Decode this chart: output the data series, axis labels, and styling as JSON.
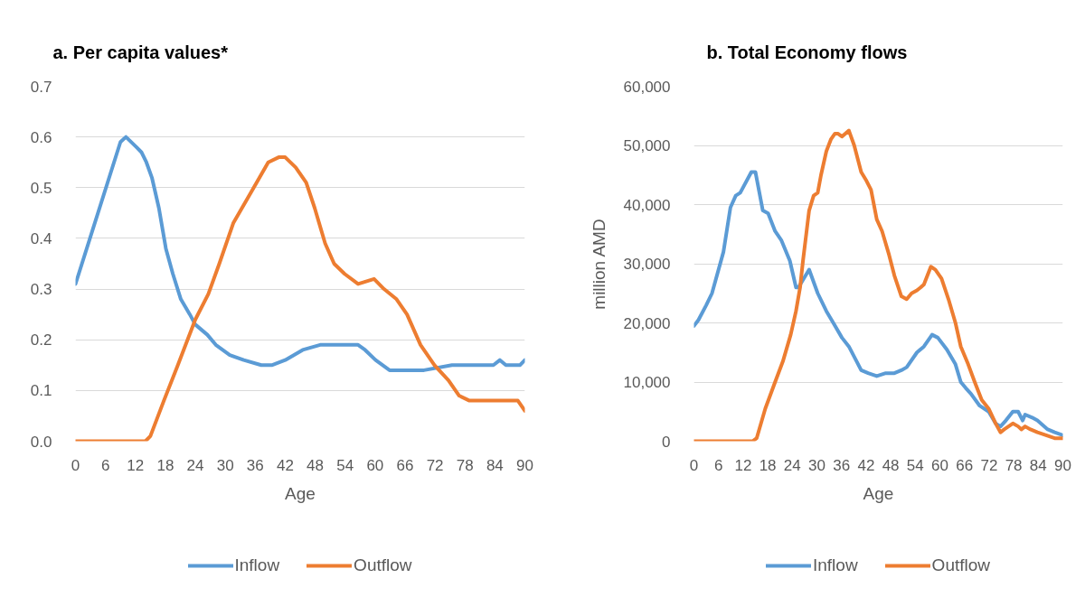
{
  "chart_data": [
    {
      "type": "line",
      "title": "a. Per capita values*",
      "xlabel": "Age",
      "xlim": [
        0,
        90
      ],
      "xticks": [
        0,
        6,
        12,
        18,
        24,
        30,
        36,
        42,
        48,
        54,
        60,
        66,
        72,
        78,
        84,
        90
      ],
      "ylim": [
        0,
        0.7
      ],
      "yticks": [
        {
          "value": 0,
          "label": "0.0"
        },
        0.1,
        0.2,
        0.3,
        0.4,
        0.5,
        0.6,
        0.7
      ],
      "grid": "y",
      "legend": "bottom",
      "series": [
        {
          "name": "Inflow",
          "color": "#5b9bd5",
          "x": [
            0,
            9,
            10.1,
            12.2,
            13.2,
            14.2,
            15.3,
            16.7,
            18.1,
            19.5,
            21.1,
            22.9,
            24,
            26.4,
            28.1,
            30.9,
            33.7,
            37.2,
            39.3,
            42,
            45.5,
            49,
            51.4,
            53.5,
            56.6,
            58,
            60.1,
            62.9,
            67.8,
            69.8,
            75.4,
            77.5,
            83.7,
            85,
            86.2,
            89,
            90
          ],
          "values": [
            0.31,
            0.59,
            0.6,
            0.58,
            0.57,
            0.55,
            0.52,
            0.46,
            0.38,
            0.33,
            0.28,
            0.25,
            0.23,
            0.21,
            0.19,
            0.17,
            0.16,
            0.15,
            0.15,
            0.16,
            0.18,
            0.19,
            0.19,
            0.19,
            0.19,
            0.18,
            0.16,
            0.14,
            0.14,
            0.14,
            0.15,
            0.15,
            0.15,
            0.16,
            0.15,
            0.15,
            0.16
          ]
        },
        {
          "name": "Outflow",
          "color": "#ed7d31",
          "x": [
            0,
            14,
            15,
            17.7,
            20.5,
            24,
            26.6,
            28.8,
            31.6,
            35.1,
            38.6,
            40.7,
            42,
            44.1,
            46.2,
            47.9,
            50,
            51.8,
            53.9,
            56.6,
            59.8,
            61.8,
            64.3,
            66.4,
            69.1,
            71.9,
            74.7,
            76.8,
            78.9,
            83,
            84.1,
            86.5,
            88.6,
            90
          ],
          "values": [
            0,
            0,
            0.01,
            0.08,
            0.15,
            0.24,
            0.29,
            0.35,
            0.43,
            0.49,
            0.55,
            0.56,
            0.56,
            0.54,
            0.51,
            0.46,
            0.39,
            0.35,
            0.33,
            0.31,
            0.32,
            0.3,
            0.28,
            0.25,
            0.19,
            0.15,
            0.12,
            0.09,
            0.08,
            0.08,
            0.08,
            0.08,
            0.08,
            0.06
          ]
        }
      ]
    },
    {
      "type": "line",
      "title": "b. Total Economy flows",
      "xlabel": "Age",
      "ylabel": "million AMD",
      "xlim": [
        0,
        90
      ],
      "xticks": [
        0,
        6,
        12,
        18,
        24,
        30,
        36,
        42,
        48,
        54,
        60,
        66,
        72,
        78,
        84,
        90
      ],
      "ylim": [
        0,
        60000
      ],
      "yticks": [
        0,
        {
          "value": 10000,
          "label": "10,000"
        },
        {
          "value": 20000,
          "label": "20,000"
        },
        {
          "value": 30000,
          "label": "30,000"
        },
        {
          "value": 40000,
          "label": "40,000"
        },
        {
          "value": 50000,
          "label": "50,000"
        },
        {
          "value": 60000,
          "label": "60,000"
        }
      ],
      "grid": "y",
      "legend": "bottom",
      "series": [
        {
          "name": "Inflow",
          "color": "#5b9bd5",
          "x": [
            0,
            1.1,
            3,
            4.4,
            7.2,
            8.9,
            10.2,
            11.3,
            14,
            15,
            16.8,
            18.1,
            19.8,
            21.3,
            23.4,
            24.9,
            25.5,
            28.1,
            30.2,
            32.3,
            34,
            36.1,
            37.8,
            40.8,
            42.5,
            44.6,
            46.8,
            48.9,
            50.6,
            51.9,
            54.4,
            56.1,
            58.1,
            59.5,
            61.7,
            63.8,
            65.1,
            66.3,
            67.6,
            69.7,
            71.9,
            73.6,
            74.8,
            76.1,
            77.8,
            79.1,
            80.2,
            80.8,
            82.5,
            83.8,
            86.3,
            88,
            90
          ],
          "values": [
            19500,
            20500,
            23000,
            25000,
            32000,
            39500,
            41500,
            42000,
            45500,
            45500,
            39000,
            38500,
            35500,
            34000,
            30500,
            26000,
            26000,
            29000,
            25000,
            22000,
            20000,
            17500,
            16000,
            12000,
            11500,
            11000,
            11500,
            11500,
            12000,
            12500,
            15000,
            16000,
            18000,
            17500,
            15500,
            13000,
            10000,
            9000,
            8000,
            6000,
            5000,
            3000,
            2500,
            3500,
            5000,
            5000,
            3500,
            4500,
            4000,
            3500,
            2000,
            1500,
            1000
          ]
        },
        {
          "name": "Outflow",
          "color": "#ed7d31",
          "x": [
            0,
            14.3,
            15.3,
            17.4,
            19.8,
            21.7,
            23.6,
            24.9,
            25.9,
            26.6,
            28.1,
            29.2,
            30.2,
            31,
            32.3,
            33.4,
            34.4,
            35.1,
            36.1,
            37.8,
            39.1,
            40.8,
            42.1,
            43.2,
            44.6,
            45.9,
            47.6,
            48.9,
            50.6,
            51.9,
            53.1,
            54.4,
            55.3,
            56.1,
            57.8,
            58.9,
            60.4,
            62.1,
            63.8,
            65.1,
            66.9,
            68.5,
            70.2,
            71.9,
            73.6,
            74.8,
            75.7,
            77.8,
            79.1,
            79.9,
            80.8,
            82.1,
            83.8,
            85.9,
            88,
            90
          ],
          "values": [
            0,
            0,
            500,
            5500,
            10000,
            13500,
            18000,
            22000,
            26000,
            30500,
            39000,
            41500,
            42000,
            45000,
            49000,
            51000,
            52000,
            52000,
            51500,
            52500,
            50000,
            45500,
            44000,
            42500,
            37500,
            35500,
            31500,
            28000,
            24500,
            24000,
            25000,
            25500,
            26000,
            26500,
            29500,
            29000,
            27500,
            24000,
            20000,
            16000,
            13000,
            10000,
            7000,
            5500,
            3000,
            1500,
            2000,
            3000,
            2500,
            2000,
            2500,
            2000,
            1500,
            1000,
            500,
            500
          ]
        }
      ]
    }
  ]
}
